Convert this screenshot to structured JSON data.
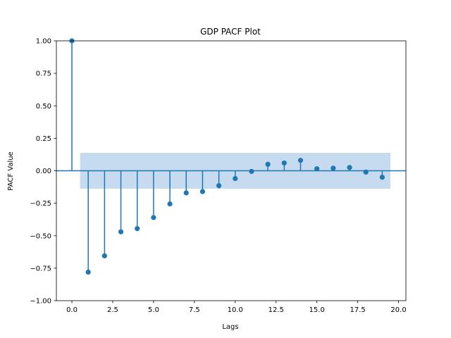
{
  "chart_data": {
    "type": "stem",
    "title": "GDP PACF Plot",
    "xlabel": "Lags",
    "ylabel": "PACF Value",
    "xlim": [
      -0.95,
      20.45
    ],
    "ylim": [
      -1.0,
      1.0
    ],
    "xticks": [
      0.0,
      2.5,
      5.0,
      7.5,
      10.0,
      12.5,
      15.0,
      17.5,
      20.0
    ],
    "xtick_labels": [
      "0.0",
      "2.5",
      "5.0",
      "7.5",
      "10.0",
      "12.5",
      "15.0",
      "17.5",
      "20.0"
    ],
    "yticks": [
      -1.0,
      -0.75,
      -0.5,
      -0.25,
      0.0,
      0.25,
      0.5,
      0.75,
      1.0
    ],
    "ytick_labels": [
      "−1.00",
      "−0.75",
      "−0.50",
      "−0.25",
      "0.00",
      "0.25",
      "0.50",
      "0.75",
      "1.00"
    ],
    "grid": false,
    "x": [
      0,
      1,
      2,
      3,
      4,
      5,
      6,
      7,
      8,
      9,
      10,
      11,
      12,
      13,
      14,
      15,
      16,
      17,
      18,
      19
    ],
    "values": [
      1.0,
      -0.78,
      -0.655,
      -0.47,
      -0.445,
      -0.36,
      -0.255,
      -0.17,
      -0.16,
      -0.115,
      -0.06,
      -0.005,
      0.05,
      0.06,
      0.08,
      0.015,
      0.02,
      0.025,
      -0.01,
      -0.05
    ],
    "confidence_band": {
      "x_start": 0.5,
      "x_end": 19.5,
      "lower": -0.138,
      "upper": 0.138
    },
    "colors": {
      "stem": "#1f77b4",
      "band": "#c6dbef",
      "axis": "#000000"
    }
  }
}
